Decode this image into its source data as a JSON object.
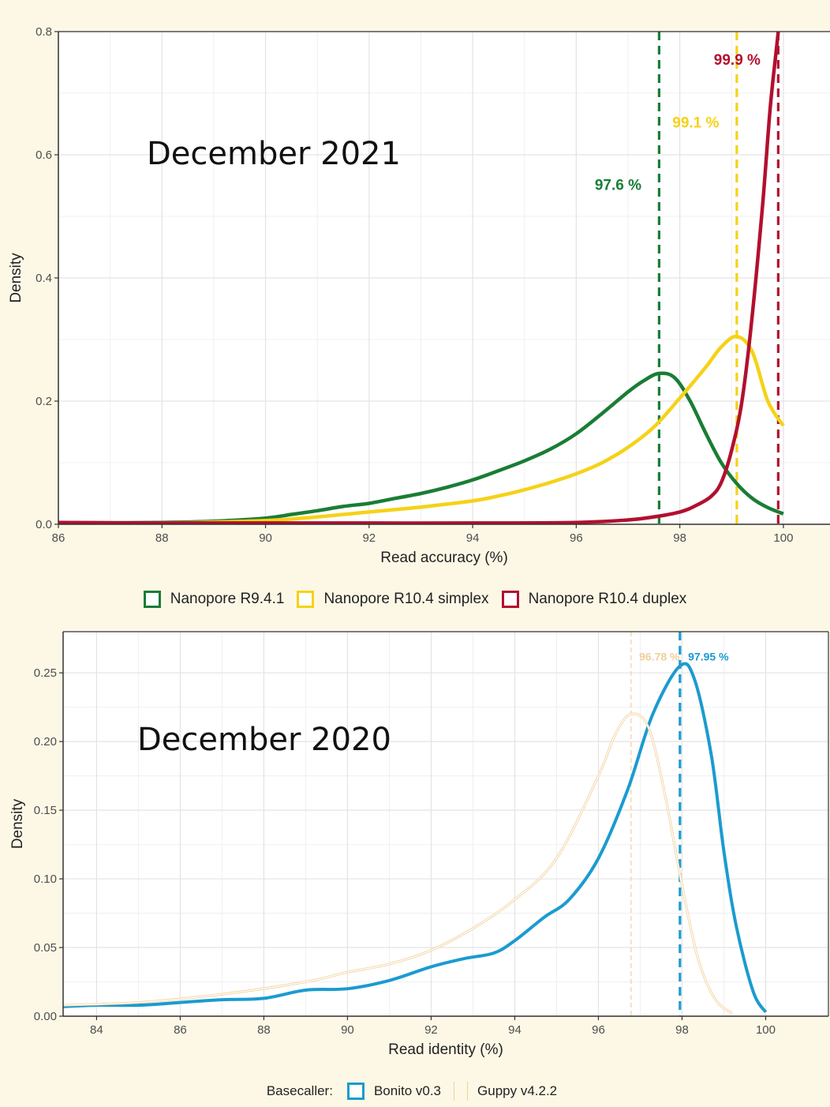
{
  "chart_data": [
    {
      "type": "line",
      "title": "",
      "overlay_label": "December 2021",
      "xlabel": "Read accuracy (%)",
      "ylabel": "Density",
      "xlim": [
        86,
        100.9
      ],
      "ylim": [
        0,
        0.8
      ],
      "x_ticks": [
        86,
        88,
        90,
        92,
        94,
        96,
        98,
        100
      ],
      "y_ticks": [
        0.0,
        0.2,
        0.4,
        0.6,
        0.8
      ],
      "x_tick_labels": [
        "86",
        "88",
        "90",
        "92",
        "94",
        "96",
        "98",
        "100"
      ],
      "y_tick_labels": [
        "0.0",
        "0.2",
        "0.4",
        "0.6",
        "0.8"
      ],
      "grid": true,
      "legend_position": "bottom",
      "series": [
        {
          "name": "Nanopore R9.4.1",
          "color": "#1a7d35",
          "x": [
            86,
            88,
            89,
            90,
            90.5,
            91,
            91.5,
            92,
            92.5,
            93,
            93.5,
            94,
            94.5,
            95,
            95.5,
            96,
            96.5,
            97,
            97.3,
            97.6,
            97.9,
            98.2,
            98.5,
            98.8,
            99.1,
            99.4,
            99.7,
            100
          ],
          "y": [
            0.002,
            0.003,
            0.005,
            0.01,
            0.016,
            0.022,
            0.029,
            0.034,
            0.042,
            0.05,
            0.06,
            0.072,
            0.087,
            0.103,
            0.122,
            0.147,
            0.18,
            0.215,
            0.233,
            0.245,
            0.238,
            0.2,
            0.148,
            0.1,
            0.066,
            0.042,
            0.027,
            0.017
          ]
        },
        {
          "name": "Nanopore R10.4 simplex",
          "color": "#f5d218",
          "x": [
            86,
            88,
            90,
            91,
            92,
            93,
            94,
            94.5,
            95,
            95.5,
            96,
            96.5,
            97,
            97.5,
            98,
            98.5,
            98.8,
            99.1,
            99.4,
            99.7,
            100
          ],
          "y": [
            0.001,
            0.002,
            0.006,
            0.012,
            0.02,
            0.028,
            0.038,
            0.046,
            0.056,
            0.068,
            0.082,
            0.1,
            0.125,
            0.158,
            0.205,
            0.255,
            0.288,
            0.305,
            0.28,
            0.2,
            0.16
          ]
        },
        {
          "name": "Nanopore R10.4 duplex",
          "color": "#b2102f",
          "x": [
            86,
            88,
            90,
            92,
            94,
            96,
            97,
            97.5,
            98,
            98.3,
            98.6,
            98.8,
            99,
            99.2,
            99.4,
            99.6,
            99.75,
            99.9,
            100
          ],
          "y": [
            0.003,
            0.002,
            0.002,
            0.002,
            0.002,
            0.003,
            0.007,
            0.012,
            0.02,
            0.03,
            0.045,
            0.068,
            0.12,
            0.2,
            0.34,
            0.52,
            0.68,
            0.8,
            0.9
          ]
        }
      ],
      "reference_lines": [
        {
          "series": "Nanopore R9.4.1",
          "x": 97.6,
          "label": "97.6 %",
          "label_y": 0.552
        },
        {
          "series": "Nanopore R10.4 simplex",
          "x": 99.1,
          "label": "99.1 %",
          "label_y": 0.653
        },
        {
          "series": "Nanopore R10.4 duplex",
          "x": 99.9,
          "label": "99.9 %",
          "label_y": 0.755
        }
      ]
    },
    {
      "type": "line",
      "title": "",
      "overlay_label": "December 2020",
      "xlabel": "Read identity (%)",
      "ylabel": "Density",
      "xlim": [
        83.2,
        101.5
      ],
      "ylim": [
        0,
        0.28
      ],
      "x_ticks": [
        84,
        86,
        88,
        90,
        92,
        94,
        96,
        98,
        100
      ],
      "y_ticks": [
        0.0,
        0.05,
        0.1,
        0.15,
        0.2,
        0.25
      ],
      "x_tick_labels": [
        "84",
        "86",
        "88",
        "90",
        "92",
        "94",
        "96",
        "98",
        "100"
      ],
      "y_tick_labels": [
        "0.00",
        "0.05",
        "0.10",
        "0.15",
        "0.20",
        "0.25"
      ],
      "grid": true,
      "legend_title": "Basecaller:",
      "legend_position": "bottom",
      "series": [
        {
          "name": "Bonito v0.3",
          "color": "#1b9bd0",
          "x": [
            83.2,
            84,
            85,
            86,
            87,
            88,
            89,
            90,
            91,
            92,
            92.8,
            93.5,
            94,
            94.7,
            95.3,
            96,
            96.7,
            97.3,
            97.95,
            98.3,
            98.7,
            99,
            99.3,
            99.7,
            100
          ],
          "y": [
            0.007,
            0.008,
            0.008,
            0.01,
            0.012,
            0.013,
            0.019,
            0.02,
            0.026,
            0.036,
            0.042,
            0.046,
            0.055,
            0.072,
            0.085,
            0.115,
            0.165,
            0.22,
            0.255,
            0.245,
            0.19,
            0.12,
            0.065,
            0.018,
            0.003
          ]
        },
        {
          "name": "Guppy v4.2.2",
          "color": "#f0cf9a",
          "x": [
            83.2,
            85,
            87,
            89,
            90,
            91,
            92,
            93,
            94,
            95,
            96,
            96.4,
            96.78,
            97.2,
            97.6,
            98,
            98.4,
            98.8,
            99.2
          ],
          "y": [
            0.008,
            0.01,
            0.016,
            0.025,
            0.032,
            0.038,
            0.048,
            0.064,
            0.085,
            0.115,
            0.175,
            0.205,
            0.22,
            0.21,
            0.16,
            0.095,
            0.04,
            0.012,
            0.002
          ]
        }
      ],
      "reference_lines": [
        {
          "series": "Guppy v4.2.2",
          "x": 96.78,
          "label": "96.78 %",
          "label_y": 0.262
        },
        {
          "series": "Bonito v0.3",
          "x": 97.95,
          "label": "97.95 %",
          "label_y": 0.262
        }
      ]
    }
  ]
}
